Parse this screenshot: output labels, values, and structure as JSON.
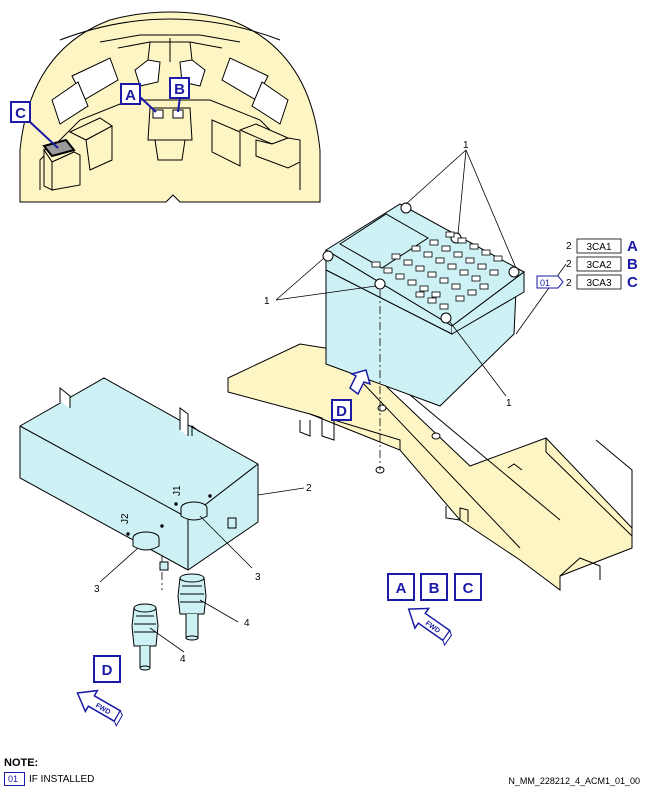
{
  "item_numbers": {
    "one": "1",
    "two": "2",
    "three": "3",
    "four": "4"
  },
  "views": {
    "a": "A",
    "b": "B",
    "c": "C",
    "d": "D"
  },
  "components": [
    {
      "qty": "2",
      "ident": "3CA1",
      "view": "A",
      "effectivity": ""
    },
    {
      "qty": "2",
      "ident": "3CA2",
      "view": "B",
      "effectivity": ""
    },
    {
      "qty": "2",
      "ident": "3CA3",
      "view": "C",
      "effectivity": "01"
    }
  ],
  "connector_marks": {
    "j1": "J1",
    "j2": "J2"
  },
  "fwd": "FWD",
  "note": {
    "title": "NOTE:",
    "code": "01",
    "text": "IF INSTALLED"
  },
  "ref": "N_MM_228212_4_ACM1_01_00",
  "colors": {
    "cockpit": "#fdf6c4",
    "unit": "#cdf1f4",
    "tray": "#fdf6c4",
    "callout": "#1a1aa6"
  }
}
